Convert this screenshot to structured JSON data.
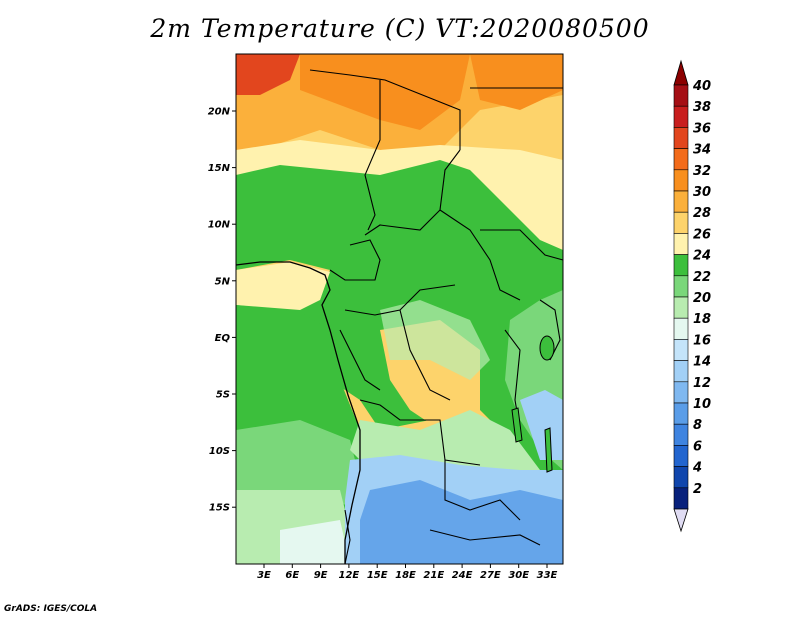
{
  "title": "2m Temperature (C) VT:2020080500",
  "credit": "GrADS: IGES/COLA",
  "lat_ticks": [
    "20N",
    "15N",
    "10N",
    "5N",
    "EQ",
    "5S",
    "10S",
    "15S"
  ],
  "lon_ticks": [
    "3E",
    "6E",
    "9E",
    "12E",
    "15E",
    "18E",
    "21E",
    "24E",
    "27E",
    "30E",
    "33E"
  ],
  "colorbar": {
    "labels": [
      "40",
      "38",
      "36",
      "34",
      "32",
      "30",
      "28",
      "26",
      "24",
      "22",
      "20",
      "18",
      "16",
      "14",
      "12",
      "10",
      "8",
      "6",
      "4",
      "2"
    ],
    "colors": [
      "#a50f15",
      "#c81e1e",
      "#e2461e",
      "#f36b1a",
      "#f88f1e",
      "#fbb03b",
      "#fdd36b",
      "#fff2ae",
      "#3cbf3c",
      "#7ad77a",
      "#b8ecb0",
      "#e5f8f0",
      "#c4e4fa",
      "#a2d0f6",
      "#7fb8f0",
      "#5a9de8",
      "#3f84e0",
      "#2265cf",
      "#1046ad",
      "#08217c"
    ],
    "top_arrow_color": "#8b0000",
    "bottom_arrow_color": "#e0dcf3"
  },
  "map_palette": {
    "hot": "#f88f1e",
    "warm": "#fbb03b",
    "mild": "#fdd36b",
    "pale": "#fff2ae",
    "green_dark": "#3cbf3c",
    "green": "#7ad77a",
    "green_light": "#b8ecb0",
    "cyan": "#e5f8f0",
    "blue_light": "#a2d0f6",
    "blue": "#5a9de8",
    "red": "#e2461e"
  },
  "map_extent": {
    "lon": [
      0,
      35
    ],
    "lat": [
      -20,
      25
    ]
  }
}
